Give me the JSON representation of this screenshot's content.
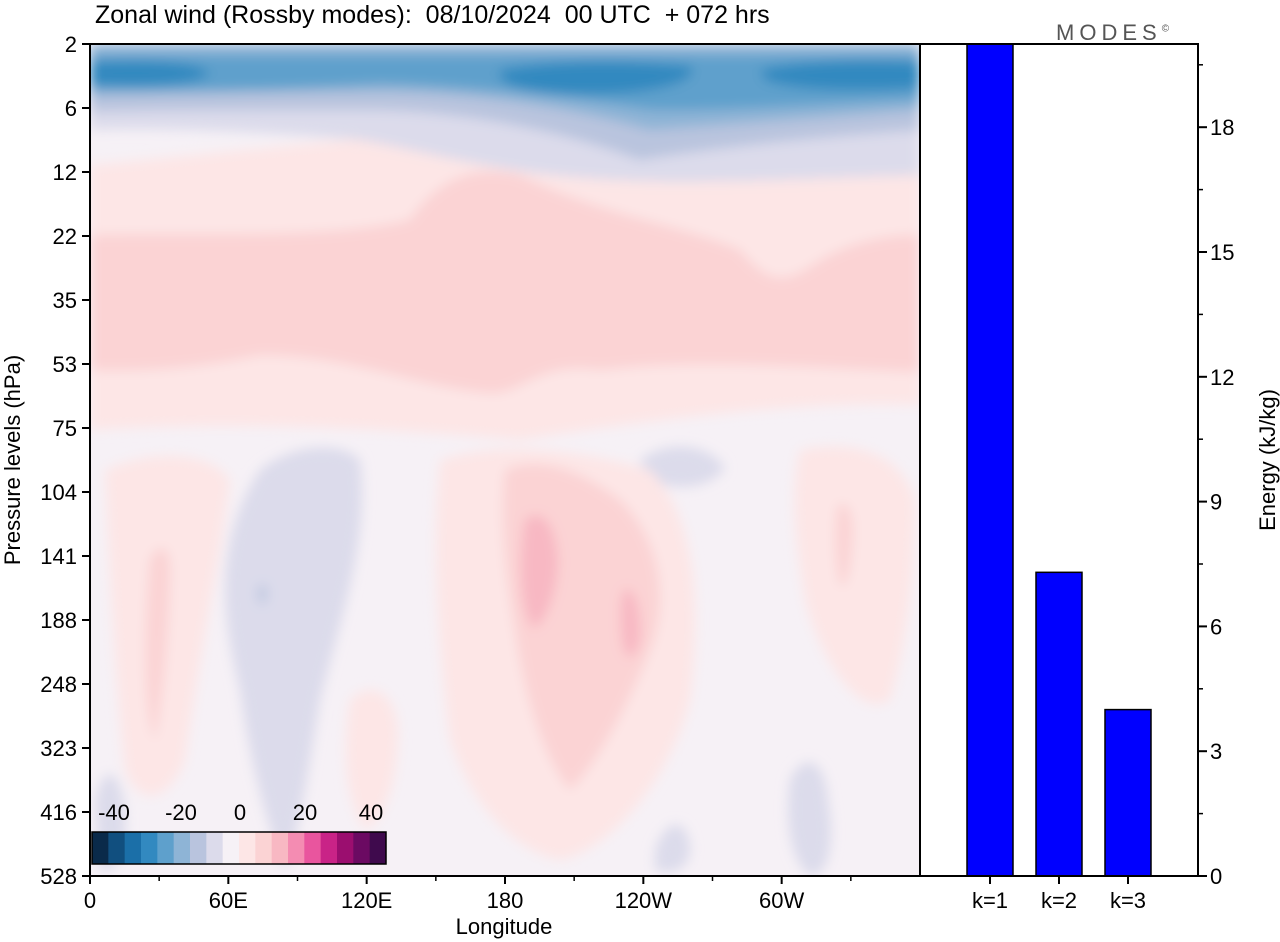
{
  "title": "Zonal wind (Rossby modes):  08/10/2024  00 UTC  + 072 hrs",
  "brand": "MODES",
  "brand_mark": "©",
  "chart_data": [
    {
      "type": "heatmap",
      "title": "Zonal wind (Rossby modes):  08/10/2024  00 UTC  + 072 hrs",
      "xlabel": "Longitude",
      "ylabel": "Pressure levels (hPa)",
      "x_ticks": [
        "0",
        "60E",
        "120E",
        "180",
        "120W",
        "60W"
      ],
      "y_ticks": [
        "2",
        "6",
        "12",
        "22",
        "35",
        "53",
        "75",
        "104",
        "141",
        "188",
        "248",
        "323",
        "416",
        "528"
      ],
      "colorbar_ticks": [
        "-40",
        "-20",
        "0",
        "20",
        "40"
      ],
      "colorbar_colors": [
        "#0a2a4a",
        "#114f7f",
        "#1b6fa8",
        "#3289c0",
        "#5ea0cc",
        "#8eb4d6",
        "#b9c4de",
        "#dcdbeb",
        "#f6f1f6",
        "#fde6e6",
        "#fbd3d4",
        "#f8b8c3",
        "#f48cb2",
        "#e9559e",
        "#c92387",
        "#9b0e6f",
        "#6b0a62",
        "#3f0a4d"
      ]
    },
    {
      "type": "bar",
      "categories": [
        "k=1",
        "k=2",
        "k=3"
      ],
      "values": [
        20,
        7.3,
        4
      ],
      "ylabel": "Energy (kJ/kg)",
      "y_ticks": [
        "0",
        "3",
        "6",
        "9",
        "12",
        "15",
        "18"
      ],
      "ylim": [
        0,
        20
      ],
      "bar_color": "#0000ff"
    }
  ]
}
